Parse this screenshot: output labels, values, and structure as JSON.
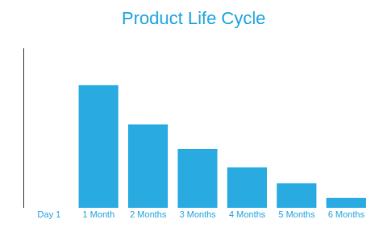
{
  "chart_data": {
    "type": "bar",
    "title": "Product Life Cycle",
    "categories": [
      "Day 1",
      "1 Month",
      "2 Months",
      "3 Months",
      "4 Months",
      "5 Months",
      "6 Months"
    ],
    "values": [
      0,
      100,
      68,
      48,
      33,
      20,
      8
    ],
    "color": "#29ABE2",
    "ylim": [
      0,
      130
    ],
    "grid": false,
    "tick_labels": "x"
  }
}
